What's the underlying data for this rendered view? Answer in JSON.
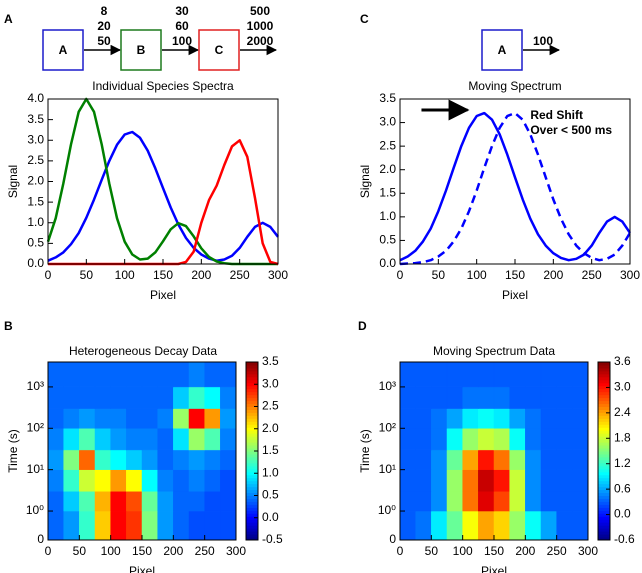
{
  "chart_data": [
    {
      "type": "line",
      "panel_label": "A",
      "scheme": {
        "boxes": [
          {
            "label": "A",
            "color": "#1c1ccc"
          },
          {
            "label": "B",
            "color": "#1d7a1d"
          },
          {
            "label": "C",
            "color": "#e02020"
          }
        ],
        "rates": [
          [
            8,
            20,
            50
          ],
          [
            30,
            60,
            100
          ],
          [
            500,
            1000,
            2000
          ]
        ]
      },
      "title": "Individual Species Spectra",
      "xlabel": "Pixel",
      "ylabel": "Signal",
      "x": [
        0,
        10,
        20,
        30,
        40,
        50,
        60,
        70,
        80,
        90,
        100,
        110,
        120,
        130,
        140,
        150,
        160,
        170,
        180,
        190,
        200,
        210,
        220,
        230,
        240,
        250,
        260,
        270,
        280,
        290,
        300
      ],
      "series": [
        {
          "color": "#0000ff",
          "values": [
            0.08,
            0.16,
            0.28,
            0.48,
            0.75,
            1.12,
            1.56,
            2.04,
            2.5,
            2.89,
            3.14,
            3.2,
            3.06,
            2.75,
            2.32,
            1.84,
            1.37,
            0.96,
            0.63,
            0.39,
            0.23,
            0.13,
            0.08,
            0.11,
            0.2,
            0.39,
            0.66,
            0.9,
            1.0,
            0.9,
            0.66
          ]
        },
        {
          "color": "#008000",
          "values": [
            0.54,
            1.11,
            1.95,
            2.9,
            3.69,
            4.0,
            3.69,
            2.9,
            1.95,
            1.11,
            0.54,
            0.23,
            0.11,
            0.13,
            0.28,
            0.55,
            0.84,
            0.99,
            0.92,
            0.67,
            0.38,
            0.17,
            0.06,
            0.02,
            0,
            0,
            0,
            0,
            0,
            0,
            0
          ]
        },
        {
          "color": "#ff0000",
          "values": [
            0,
            0,
            0,
            0,
            0,
            0,
            0,
            0,
            0,
            0,
            0,
            0,
            0,
            0,
            0,
            0,
            0,
            0,
            0.05,
            0.3,
            1.0,
            1.55,
            1.9,
            2.4,
            2.85,
            3.0,
            2.6,
            1.6,
            0.5,
            0.05,
            0
          ]
        }
      ],
      "xlim": [
        0,
        300
      ],
      "xticks": [
        0,
        50,
        100,
        150,
        200,
        250,
        300
      ],
      "ylim": [
        0,
        4
      ],
      "yticks": [
        {
          "value": 0,
          "label": "0.0"
        },
        0.5,
        {
          "value": 1,
          "label": "1.0"
        },
        1.5,
        {
          "value": 2,
          "label": "2.0"
        },
        2.5,
        {
          "value": 3,
          "label": "3.0"
        },
        3.5,
        {
          "value": 4,
          "label": "4.0"
        }
      ]
    },
    {
      "type": "line",
      "panel_label": "C",
      "scheme": {
        "boxes": [
          {
            "label": "A",
            "color": "#1c1ccc"
          }
        ],
        "rates": [
          [
            100
          ]
        ]
      },
      "title": "Moving Spectrum",
      "xlabel": "Pixel",
      "ylabel": "Signal",
      "annotation": [
        "Red Shift",
        "Over < 500 ms"
      ],
      "x": [
        0,
        10,
        20,
        30,
        40,
        50,
        60,
        70,
        80,
        90,
        100,
        110,
        120,
        130,
        140,
        150,
        160,
        170,
        180,
        190,
        200,
        210,
        220,
        230,
        240,
        250,
        260,
        270,
        280,
        290,
        300
      ],
      "series": [
        {
          "color": "#0000ff",
          "dash": false,
          "values": [
            0.08,
            0.16,
            0.28,
            0.48,
            0.75,
            1.12,
            1.56,
            2.04,
            2.5,
            2.89,
            3.14,
            3.2,
            3.06,
            2.75,
            2.32,
            1.84,
            1.37,
            0.96,
            0.63,
            0.39,
            0.23,
            0.13,
            0.08,
            0.11,
            0.2,
            0.39,
            0.66,
            0.9,
            1.0,
            0.9,
            0.66
          ]
        },
        {
          "color": "#0000ff",
          "dash": true,
          "values": [
            0,
            0.01,
            0.02,
            0.04,
            0.08,
            0.16,
            0.28,
            0.48,
            0.75,
            1.12,
            1.56,
            2.04,
            2.5,
            2.89,
            3.14,
            3.2,
            3.06,
            2.75,
            2.32,
            1.84,
            1.37,
            0.96,
            0.63,
            0.39,
            0.23,
            0.13,
            0.08,
            0.11,
            0.2,
            0.39,
            0.66
          ]
        }
      ],
      "xlim": [
        0,
        300
      ],
      "xticks": [
        0,
        50,
        100,
        150,
        200,
        250,
        300
      ],
      "ylim": [
        0,
        3.5
      ],
      "yticks": [
        {
          "value": 0,
          "label": "0.0"
        },
        0.5,
        {
          "value": 1,
          "label": "1.0"
        },
        1.5,
        {
          "value": 2,
          "label": "2.0"
        },
        2.5,
        {
          "value": 3,
          "label": "3.0"
        },
        3.5
      ]
    },
    {
      "type": "heatmap",
      "panel_label": "B",
      "title": "Heterogeneous Decay Data",
      "xlabel": "Pixel",
      "ylabel": "Time (s)",
      "cmap": "jet",
      "yscale": "symlog",
      "x_edges": [
        0,
        25,
        50,
        75,
        100,
        125,
        150,
        175,
        200,
        225,
        250,
        275,
        300
      ],
      "y_edges": [
        0,
        1,
        3,
        10,
        30,
        100,
        300,
        1000,
        4000
      ],
      "z": [
        [
          0.4,
          0.6,
          1.2,
          2.2,
          3.0,
          2.8,
          1.5,
          0.6,
          0.4,
          0.3,
          0.3,
          0.3
        ],
        [
          0.4,
          0.8,
          1.3,
          2.3,
          3.0,
          2.7,
          1.4,
          0.6,
          0.4,
          0.4,
          0.3,
          0.3
        ],
        [
          0.5,
          1.2,
          1.8,
          2.0,
          2.4,
          2.0,
          1.0,
          0.5,
          0.4,
          0.5,
          0.4,
          0.3
        ],
        [
          0.6,
          1.5,
          2.6,
          1.2,
          1.0,
          0.8,
          0.6,
          0.4,
          0.5,
          0.6,
          0.5,
          0.4
        ],
        [
          0.5,
          0.9,
          1.3,
          0.8,
          0.6,
          0.5,
          0.5,
          0.4,
          0.9,
          1.6,
          1.3,
          0.5
        ],
        [
          0.4,
          0.5,
          0.6,
          0.5,
          0.5,
          0.4,
          0.4,
          0.5,
          1.6,
          3.0,
          2.4,
          0.6
        ],
        [
          0.4,
          0.4,
          0.4,
          0.4,
          0.4,
          0.4,
          0.4,
          0.4,
          0.8,
          1.2,
          1.0,
          0.5
        ],
        [
          0.4,
          0.4,
          0.4,
          0.4,
          0.4,
          0.4,
          0.4,
          0.4,
          0.4,
          0.5,
          0.4,
          0.4
        ]
      ],
      "xlim": [
        0,
        300
      ],
      "xticks": [
        0,
        50,
        100,
        150,
        200,
        250,
        300
      ],
      "ylim": [
        0,
        4000
      ],
      "yticks": [
        0,
        {
          "value": 1,
          "label": "10⁰"
        },
        {
          "value": 10,
          "label": "10¹"
        },
        {
          "value": 100,
          "label": "10²"
        },
        {
          "value": 1000,
          "label": "10³"
        }
      ],
      "zlim": [
        -0.5,
        3.5
      ],
      "zticks": [
        -0.5,
        {
          "value": 0,
          "label": "0.0"
        },
        0.5,
        {
          "value": 1,
          "label": "1.0"
        },
        1.5,
        {
          "value": 2,
          "label": "2.0"
        },
        2.5,
        {
          "value": 3,
          "label": "3.0"
        },
        3.5
      ]
    },
    {
      "type": "heatmap",
      "panel_label": "D",
      "title": "Moving Spectrum Data",
      "xlabel": "Pixel",
      "ylabel": "Time (s)",
      "cmap": "jet",
      "yscale": "symlog",
      "x_edges": [
        0,
        25,
        50,
        75,
        100,
        125,
        150,
        175,
        200,
        225,
        250,
        275,
        300
      ],
      "y_edges": [
        0,
        1,
        3,
        10,
        30,
        100,
        300,
        1000,
        4000
      ],
      "z": [
        [
          0.3,
          0.4,
          0.9,
          1.4,
          2.0,
          2.4,
          2.2,
          1.6,
          1.0,
          0.6,
          0.3,
          0.3
        ],
        [
          0.3,
          0.3,
          0.5,
          1.6,
          2.6,
          3.2,
          2.8,
          1.8,
          0.5,
          0.3,
          0.3,
          0.3
        ],
        [
          0.3,
          0.3,
          0.5,
          1.6,
          2.6,
          3.3,
          3.0,
          1.8,
          0.5,
          0.3,
          0.3,
          0.3
        ],
        [
          0.3,
          0.3,
          0.5,
          1.4,
          2.4,
          3.0,
          2.6,
          1.6,
          0.5,
          0.3,
          0.3,
          0.3
        ],
        [
          0.3,
          0.3,
          0.4,
          1.0,
          1.6,
          1.8,
          1.7,
          1.0,
          0.4,
          0.3,
          0.3,
          0.3
        ],
        [
          0.3,
          0.3,
          0.4,
          0.6,
          0.9,
          1.0,
          0.9,
          0.6,
          0.4,
          0.3,
          0.3,
          0.3
        ],
        [
          0.3,
          0.3,
          0.3,
          0.3,
          0.4,
          0.4,
          0.4,
          0.3,
          0.3,
          0.3,
          0.3,
          0.3
        ],
        [
          0.3,
          0.3,
          0.3,
          0.3,
          0.3,
          0.3,
          0.3,
          0.3,
          0.3,
          0.3,
          0.3,
          0.3
        ]
      ],
      "xlim": [
        0,
        300
      ],
      "xticks": [
        0,
        50,
        100,
        150,
        200,
        250,
        300
      ],
      "ylim": [
        0,
        4000
      ],
      "yticks": [
        0,
        {
          "value": 1,
          "label": "10⁰"
        },
        {
          "value": 10,
          "label": "10¹"
        },
        {
          "value": 100,
          "label": "10²"
        },
        {
          "value": 1000,
          "label": "10³"
        }
      ],
      "zlim": [
        -0.6,
        3.6
      ],
      "zticks": [
        -0.6,
        {
          "value": 0,
          "label": "0.0"
        },
        0.6,
        1.2,
        1.8,
        2.4,
        {
          "value": 3,
          "label": "3.0"
        },
        3.6
      ]
    }
  ]
}
